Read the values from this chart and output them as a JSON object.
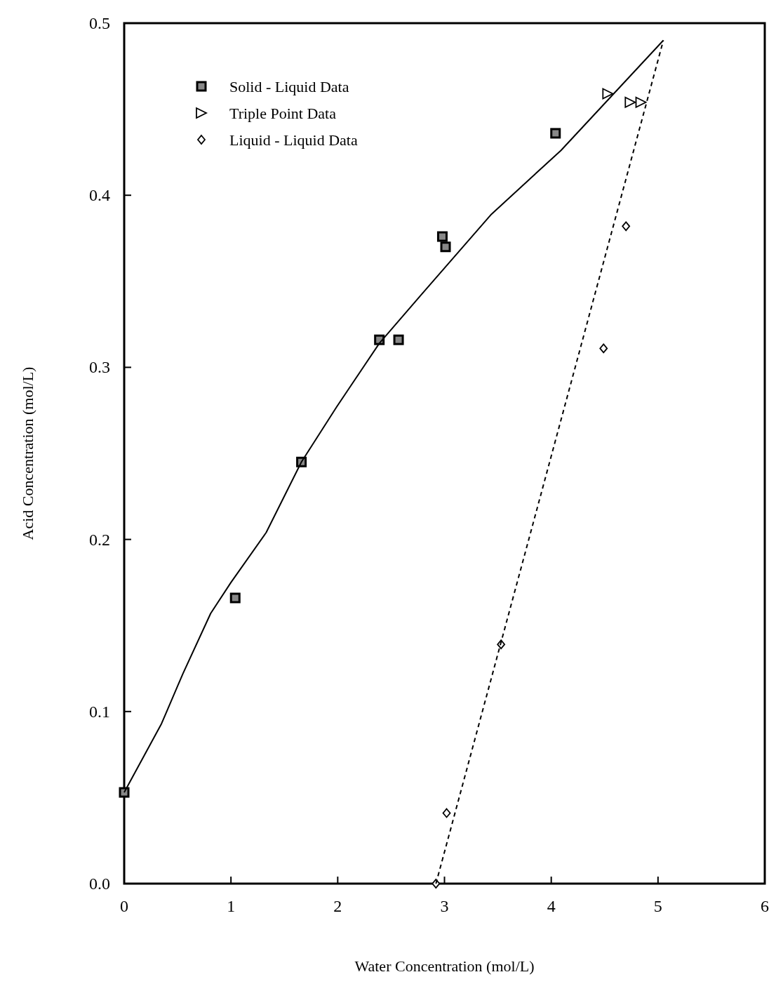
{
  "chart_data": {
    "type": "scatter",
    "xlabel": "Water Concentration  (mol/L)",
    "ylabel": "Acid Concentration  (mol/L)",
    "xlim": [
      0,
      6
    ],
    "ylim": [
      0,
      0.5
    ],
    "xticks": [
      0,
      1,
      2,
      3,
      4,
      5,
      6
    ],
    "yticks": [
      {
        "value": 0,
        "label": "0.0"
      },
      0.1,
      0.2,
      0.3,
      0.4,
      0.5
    ],
    "grid": false,
    "legend": "top left",
    "series": [
      {
        "name": "Solid - Liquid Data",
        "color": "#000000",
        "marker": "square",
        "x": [
          0,
          1.04,
          1.66,
          2.39,
          2.57,
          2.98,
          3.01,
          4.04
        ],
        "values": [
          0.053,
          0.166,
          0.245,
          0.316,
          0.316,
          0.376,
          0.37,
          0.436
        ]
      },
      {
        "name": "Triple Point Data",
        "color": "#000000",
        "marker": "triangle",
        "x": [
          4.53,
          4.74,
          4.84
        ],
        "values": [
          0.459,
          0.454,
          0.454
        ]
      },
      {
        "name": "Liquid - Liquid Data",
        "color": "#000000",
        "marker": "diamond",
        "x": [
          2.92,
          3.02,
          3.53,
          4.49,
          4.7
        ],
        "values": [
          0,
          0.041,
          0.139,
          0.311,
          0.382
        ]
      },
      {
        "type": "line",
        "color": "#000000",
        "marker": "none",
        "line_style": "solid",
        "x": [
          0,
          0.35,
          0.55,
          0.81,
          1.0,
          1.33,
          1.66,
          1.99,
          2.39,
          2.78,
          3.44,
          4.09,
          5.05
        ],
        "values": [
          0.053,
          0.093,
          0.122,
          0.157,
          0.175,
          0.204,
          0.245,
          0.277,
          0.314,
          0.342,
          0.389,
          0.426,
          0.49
        ]
      },
      {
        "type": "line",
        "color": "#000000",
        "marker": "none",
        "line_style": "dashed",
        "x": [
          2.92,
          5.05
        ],
        "values": [
          0,
          0.49
        ]
      }
    ]
  }
}
